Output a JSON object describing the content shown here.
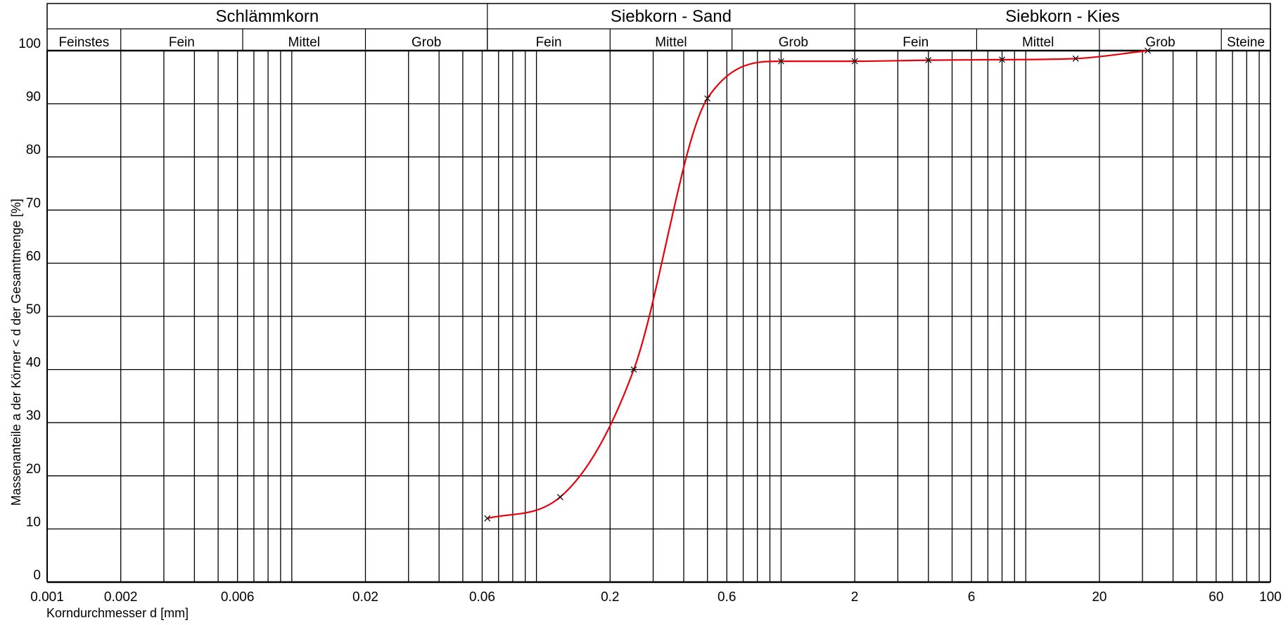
{
  "chart_data": {
    "type": "line",
    "x_scale": "log",
    "xlim": [
      0.001,
      100
    ],
    "ylim": [
      0,
      100
    ],
    "grid": true,
    "xlabel": "Korndurchmesser d [mm]",
    "ylabel": "Massenanteile a der Körner < d der Gesamtmenge [%]",
    "x_ticks": [
      0.001,
      0.002,
      0.006,
      0.02,
      0.06,
      0.2,
      0.6,
      2,
      6,
      20,
      60,
      100
    ],
    "x_tick_labels": [
      "0.001",
      "0.002",
      "0.006",
      "0.02",
      "0.06",
      "0.2",
      "0.6",
      "2",
      "6",
      "20",
      "60",
      "100"
    ],
    "y_ticks": [
      0,
      10,
      20,
      30,
      40,
      50,
      60,
      70,
      80,
      90,
      100
    ],
    "y_tick_labels": [
      "0",
      "10",
      "20",
      "30",
      "40",
      "50",
      "60",
      "70",
      "80",
      "90",
      "100"
    ],
    "top_groups": [
      {
        "label": "Schlämmkorn",
        "from": 0.001,
        "to": 0.063
      },
      {
        "label": "Siebkorn - Sand",
        "from": 0.063,
        "to": 2
      },
      {
        "label": "Siebkorn - Kies",
        "from": 2,
        "to": 100
      }
    ],
    "sub_groups": [
      {
        "label": "Feinstes",
        "from": 0.001,
        "to": 0.002
      },
      {
        "label": "Fein",
        "from": 0.002,
        "to": 0.0063
      },
      {
        "label": "Mittel",
        "from": 0.0063,
        "to": 0.02
      },
      {
        "label": "Grob",
        "from": 0.02,
        "to": 0.063
      },
      {
        "label": "Fein",
        "from": 0.063,
        "to": 0.2
      },
      {
        "label": "Mittel",
        "from": 0.2,
        "to": 0.63
      },
      {
        "label": "Grob",
        "from": 0.63,
        "to": 2
      },
      {
        "label": "Fein",
        "from": 2,
        "to": 6.3
      },
      {
        "label": "Mittel",
        "from": 6.3,
        "to": 20
      },
      {
        "label": "Grob",
        "from": 20,
        "to": 63
      },
      {
        "label": "Steine",
        "from": 63,
        "to": 100
      }
    ],
    "series": [
      {
        "color": "#e8000b",
        "marker": "x",
        "points": [
          {
            "x": 0.063,
            "y": 12.0
          },
          {
            "x": 0.125,
            "y": 16.0
          },
          {
            "x": 0.25,
            "y": 40.0
          },
          {
            "x": 0.5,
            "y": 91.0
          },
          {
            "x": 1.0,
            "y": 98.0
          },
          {
            "x": 2.0,
            "y": 98.0
          },
          {
            "x": 4.0,
            "y": 98.2
          },
          {
            "x": 8.0,
            "y": 98.3
          },
          {
            "x": 16.0,
            "y": 98.5
          },
          {
            "x": 31.5,
            "y": 100.0
          }
        ]
      }
    ]
  }
}
